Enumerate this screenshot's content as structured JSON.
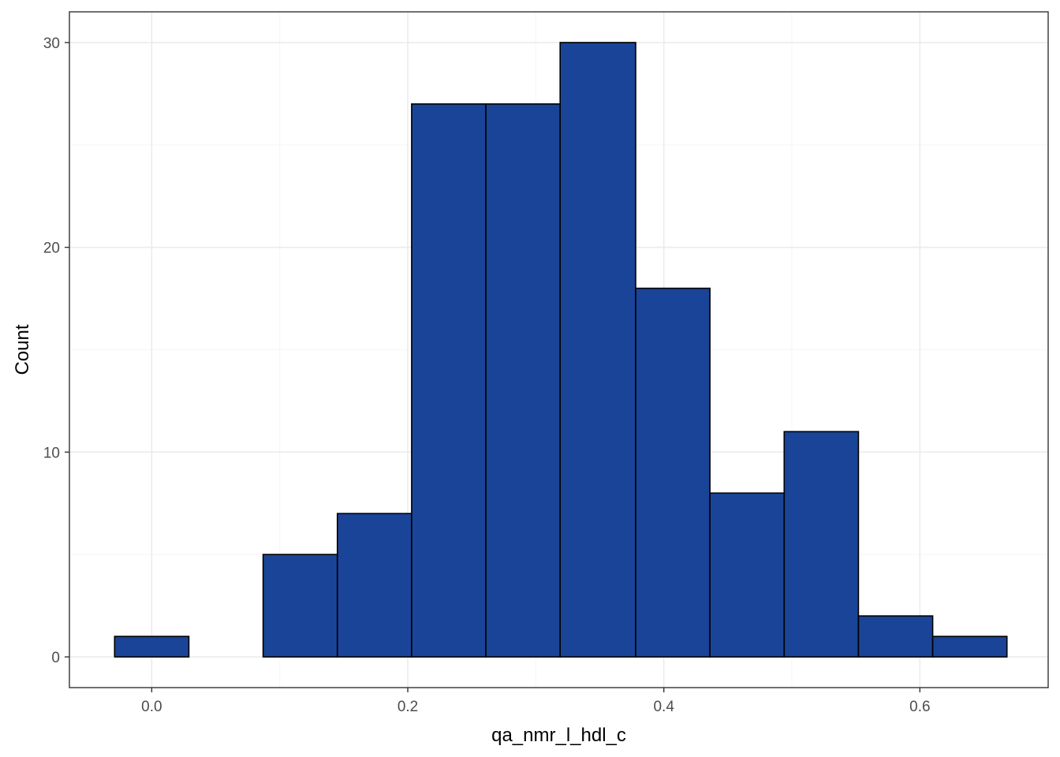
{
  "chart_data": {
    "type": "bar",
    "subtype": "histogram",
    "xlabel": "qa_nmr_l_hdl_c",
    "ylabel": "Count",
    "xlim": [
      -0.0643,
      0.7002
    ],
    "ylim": [
      -1.5,
      31.5
    ],
    "bin_width": 0.0582,
    "bins": [
      {
        "x0": -0.029,
        "x1": 0.029,
        "count": 1
      },
      {
        "x0": 0.029,
        "x1": 0.087,
        "count": 0
      },
      {
        "x0": 0.087,
        "x1": 0.145,
        "count": 5
      },
      {
        "x0": 0.145,
        "x1": 0.203,
        "count": 7
      },
      {
        "x0": 0.203,
        "x1": 0.261,
        "count": 27
      },
      {
        "x0": 0.261,
        "x1": 0.319,
        "count": 27
      },
      {
        "x0": 0.319,
        "x1": 0.378,
        "count": 30
      },
      {
        "x0": 0.378,
        "x1": 0.436,
        "count": 18
      },
      {
        "x0": 0.436,
        "x1": 0.494,
        "count": 8
      },
      {
        "x0": 0.494,
        "x1": 0.552,
        "count": 11
      },
      {
        "x0": 0.552,
        "x1": 0.61,
        "count": 2
      },
      {
        "x0": 0.61,
        "x1": 0.668,
        "count": 1
      }
    ],
    "x_ticks": [
      {
        "value": 0.0,
        "label": "0.0"
      },
      {
        "value": 0.2,
        "label": "0.2"
      },
      {
        "value": 0.4,
        "label": "0.4"
      },
      {
        "value": 0.6,
        "label": "0.6"
      }
    ],
    "y_ticks": [
      {
        "value": 0,
        "label": "0"
      },
      {
        "value": 10,
        "label": "10"
      },
      {
        "value": 20,
        "label": "20"
      },
      {
        "value": 30,
        "label": "30"
      }
    ],
    "x_minor_ticks": [
      0.1,
      0.3,
      0.5
    ],
    "y_minor_ticks": [
      5,
      15,
      25
    ],
    "grid": true,
    "legend": "none",
    "colors": {
      "bar_fill": "#1a4498",
      "bar_stroke": "#000000",
      "grid_major": "#ebebeb",
      "grid_minor": "#f5f5f5",
      "panel_border": "#333333"
    }
  }
}
